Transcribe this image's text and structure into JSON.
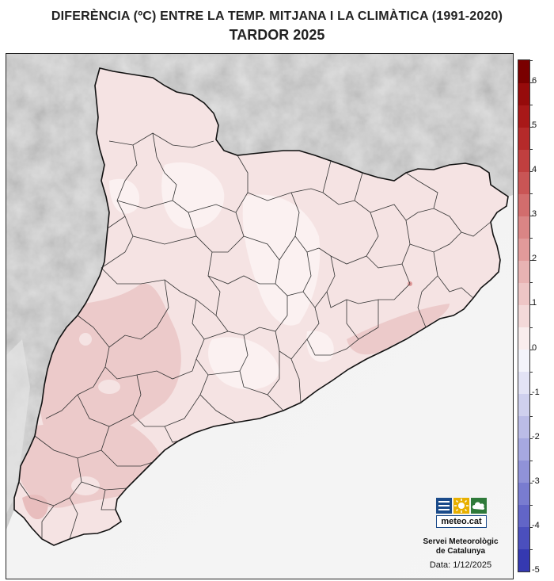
{
  "title": "DIFERÈNCIA (ºC) ENTRE LA TEMP. MITJANA I LA CLIMÀTICA (1991-2020)",
  "subtitle": "TARDOR 2025",
  "legend": {
    "ticks": [
      "6",
      "5",
      "4",
      "3",
      "2",
      "1",
      "0",
      "-1",
      "-2",
      "-3",
      "-4",
      "-5"
    ],
    "min": -5,
    "max": 6.5,
    "step": 0.5,
    "colors_warm": [
      "#f9eded",
      "#f3d9d9",
      "#eec6c6",
      "#e8b3b3",
      "#e19a9a",
      "#da8585",
      "#d26d6d",
      "#c95555",
      "#c03f3f",
      "#b52a2a",
      "#a81818",
      "#960b0b",
      "#7a0000"
    ],
    "colors_cold": [
      "#f4f4fb",
      "#e3e3f5",
      "#cfd0ee",
      "#bbbce7",
      "#a6a8e0",
      "#9092d8",
      "#797cd0",
      "#6265c7",
      "#4b4fbd",
      "#3539b1",
      "#2023a4",
      "#0f1296",
      "#00047f"
    ]
  },
  "logo": {
    "text": "meteo.cat",
    "icon_names": [
      "lines-icon",
      "sun-icon",
      "cloud-icon"
    ],
    "colors": [
      "#1b4b8a",
      "#e8b000",
      "#2f7a3a"
    ]
  },
  "organization": {
    "line1": "Servei Meteorològic",
    "line2": "de Catalunya"
  },
  "date": "Data: 1/12/2025"
}
